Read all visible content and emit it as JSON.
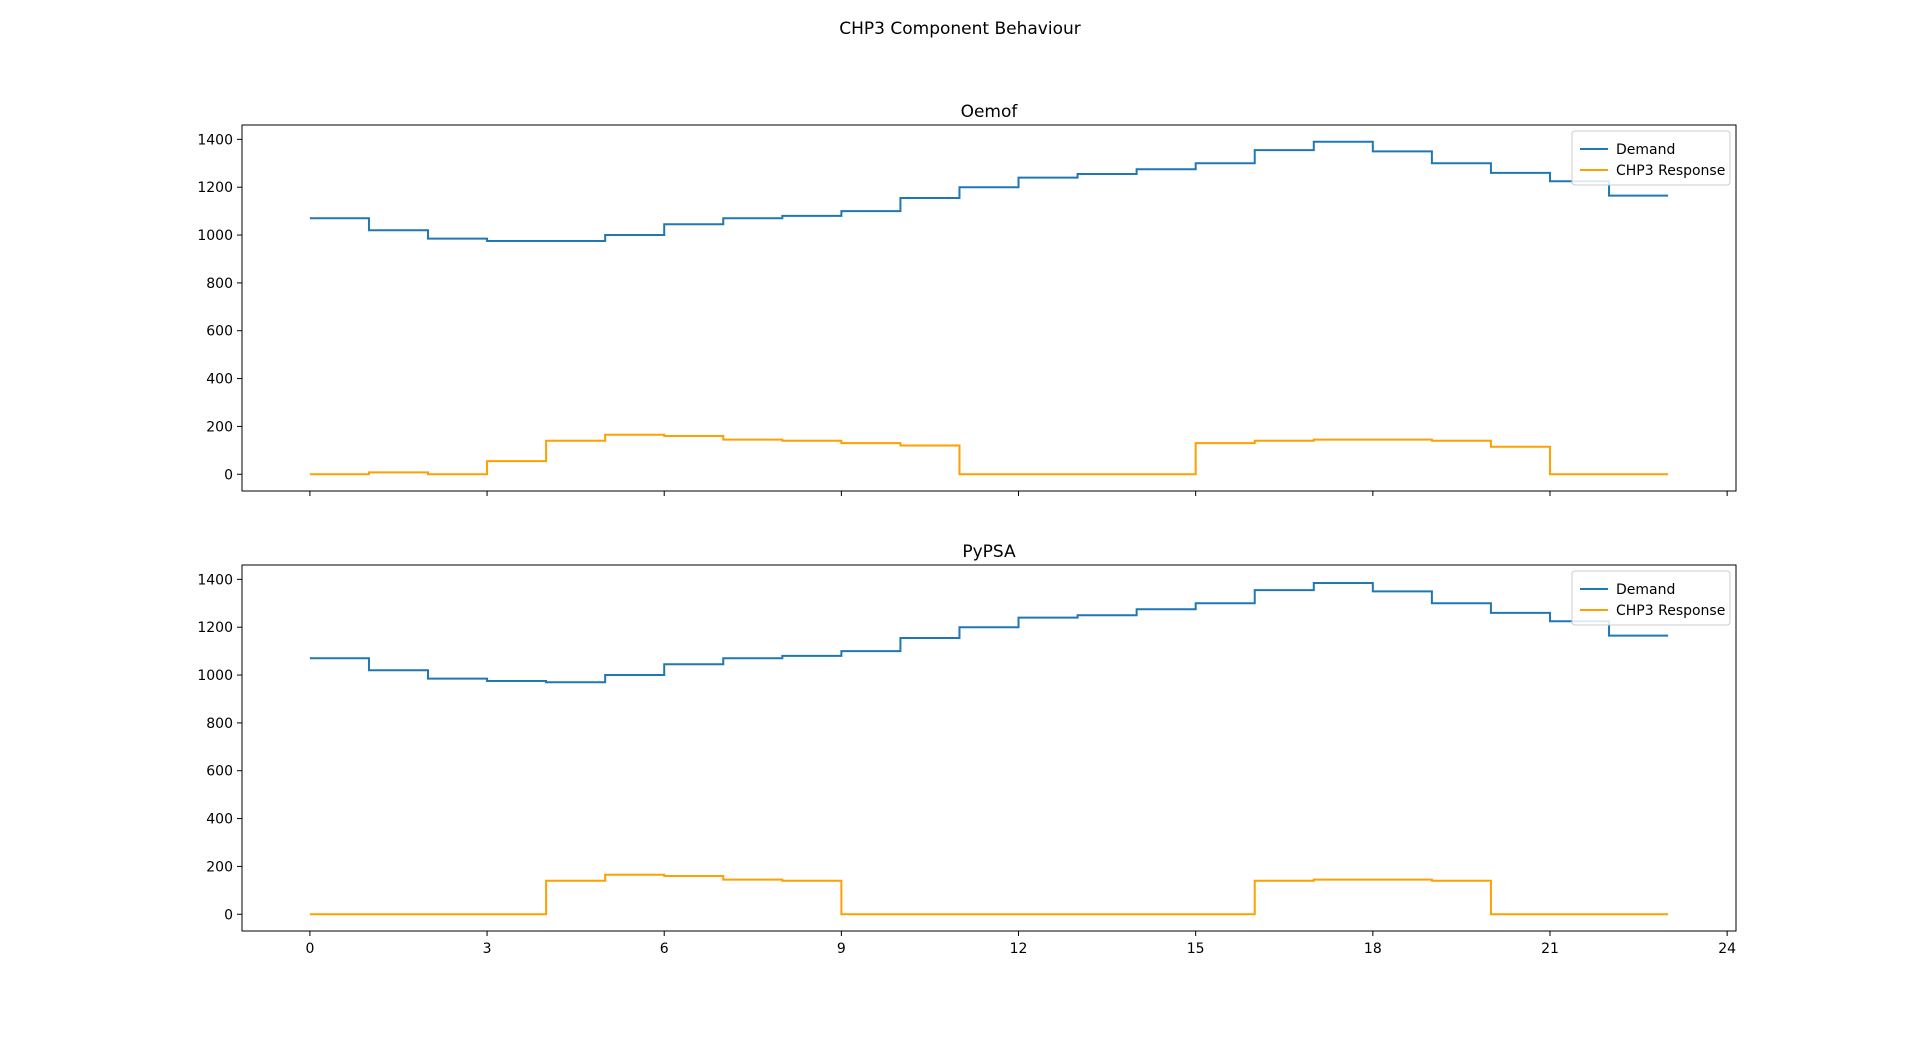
{
  "figure": {
    "suptitle": "CHP3 Component Behaviour"
  },
  "chart_data": [
    {
      "type": "line",
      "step": "post",
      "title": "Oemof",
      "xlabel": "",
      "ylabel": "",
      "x": [
        0,
        1,
        2,
        3,
        4,
        5,
        6,
        7,
        8,
        9,
        10,
        11,
        12,
        13,
        14,
        15,
        16,
        17,
        18,
        19,
        20,
        21,
        22,
        23
      ],
      "xlim": [
        -1.15,
        24.15
      ],
      "ylim": [
        -70,
        1460
      ],
      "xticks": [
        0,
        3,
        6,
        9,
        12,
        15,
        18,
        21,
        24
      ],
      "yticks": [
        0,
        200,
        400,
        600,
        800,
        1000,
        1200,
        1400
      ],
      "show_xtick_labels": false,
      "legend_position": "top-right",
      "series": [
        {
          "name": "Demand",
          "color": "#1f77b4",
          "values": [
            1070,
            1020,
            985,
            975,
            975,
            1000,
            1045,
            1070,
            1080,
            1100,
            1155,
            1200,
            1240,
            1255,
            1275,
            1300,
            1355,
            1390,
            1350,
            1300,
            1260,
            1225,
            1165,
            1165
          ]
        },
        {
          "name": "CHP3 Response",
          "color": "#ff9f00",
          "values": [
            0,
            8,
            0,
            55,
            140,
            165,
            160,
            145,
            140,
            130,
            120,
            0,
            0,
            0,
            0,
            130,
            140,
            145,
            145,
            140,
            115,
            0,
            0,
            0
          ]
        }
      ]
    },
    {
      "type": "line",
      "step": "post",
      "title": "PyPSA",
      "xlabel": "",
      "ylabel": "",
      "x": [
        0,
        1,
        2,
        3,
        4,
        5,
        6,
        7,
        8,
        9,
        10,
        11,
        12,
        13,
        14,
        15,
        16,
        17,
        18,
        19,
        20,
        21,
        22,
        23
      ],
      "xlim": [
        -1.15,
        24.15
      ],
      "ylim": [
        -70,
        1460
      ],
      "xticks": [
        0,
        3,
        6,
        9,
        12,
        15,
        18,
        21,
        24
      ],
      "yticks": [
        0,
        200,
        400,
        600,
        800,
        1000,
        1200,
        1400
      ],
      "show_xtick_labels": true,
      "legend_position": "top-right",
      "series": [
        {
          "name": "Demand",
          "color": "#1f77b4",
          "values": [
            1070,
            1020,
            985,
            975,
            970,
            1000,
            1045,
            1070,
            1080,
            1100,
            1155,
            1200,
            1240,
            1250,
            1275,
            1300,
            1355,
            1385,
            1350,
            1300,
            1260,
            1225,
            1165,
            1165
          ]
        },
        {
          "name": "CHP3 Response",
          "color": "#ff9f00",
          "values": [
            0,
            0,
            0,
            0,
            140,
            165,
            160,
            145,
            140,
            0,
            0,
            0,
            0,
            0,
            0,
            0,
            140,
            145,
            145,
            140,
            0,
            0,
            0,
            0
          ]
        }
      ]
    }
  ]
}
